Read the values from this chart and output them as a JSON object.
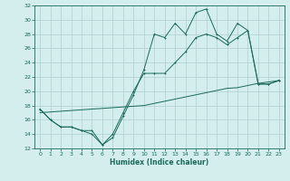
{
  "xlabel": "Humidex (Indice chaleur)",
  "ylabel": "",
  "bg_color": "#d4eded",
  "grid_color": "#b0cfcf",
  "line_color": "#1a6b5a",
  "xlim": [
    -0.5,
    23.5
  ],
  "ylim": [
    12,
    32
  ],
  "xticks": [
    0,
    1,
    2,
    3,
    4,
    5,
    6,
    7,
    8,
    9,
    10,
    11,
    12,
    13,
    14,
    15,
    16,
    17,
    18,
    19,
    20,
    21,
    22,
    23
  ],
  "yticks": [
    12,
    14,
    16,
    18,
    20,
    22,
    24,
    26,
    28,
    30,
    32
  ],
  "line1_x": [
    0,
    1,
    2,
    3,
    4,
    5,
    6,
    7,
    8,
    9,
    10,
    11,
    12,
    13,
    14,
    15,
    16,
    17,
    18,
    19,
    20,
    21,
    22,
    23
  ],
  "line1_y": [
    17.5,
    16.0,
    15.0,
    15.0,
    14.5,
    14.5,
    12.5,
    13.5,
    16.5,
    19.5,
    23.0,
    28.0,
    27.5,
    29.5,
    28.0,
    31.0,
    31.5,
    28.0,
    27.0,
    29.5,
    28.5,
    21.0,
    21.0,
    21.5
  ],
  "line2_x": [
    0,
    1,
    2,
    3,
    4,
    5,
    6,
    7,
    8,
    9,
    10,
    11,
    12,
    13,
    14,
    15,
    16,
    17,
    18,
    19,
    20,
    21,
    22,
    23
  ],
  "line2_y": [
    17.5,
    16.0,
    15.0,
    15.0,
    14.5,
    14.0,
    12.5,
    14.0,
    17.0,
    20.0,
    22.5,
    22.5,
    22.5,
    24.0,
    25.5,
    27.5,
    28.0,
    27.5,
    26.5,
    27.5,
    28.5,
    21.0,
    21.0,
    21.5
  ],
  "line3_x": [
    0,
    1,
    2,
    3,
    4,
    5,
    6,
    7,
    8,
    9,
    10,
    11,
    12,
    13,
    14,
    15,
    16,
    17,
    18,
    19,
    20,
    21,
    22,
    23
  ],
  "line3_y": [
    17.0,
    17.1,
    17.2,
    17.3,
    17.4,
    17.5,
    17.6,
    17.7,
    17.8,
    17.9,
    18.0,
    18.3,
    18.6,
    18.9,
    19.2,
    19.5,
    19.8,
    20.1,
    20.4,
    20.5,
    20.8,
    21.1,
    21.3,
    21.5
  ]
}
